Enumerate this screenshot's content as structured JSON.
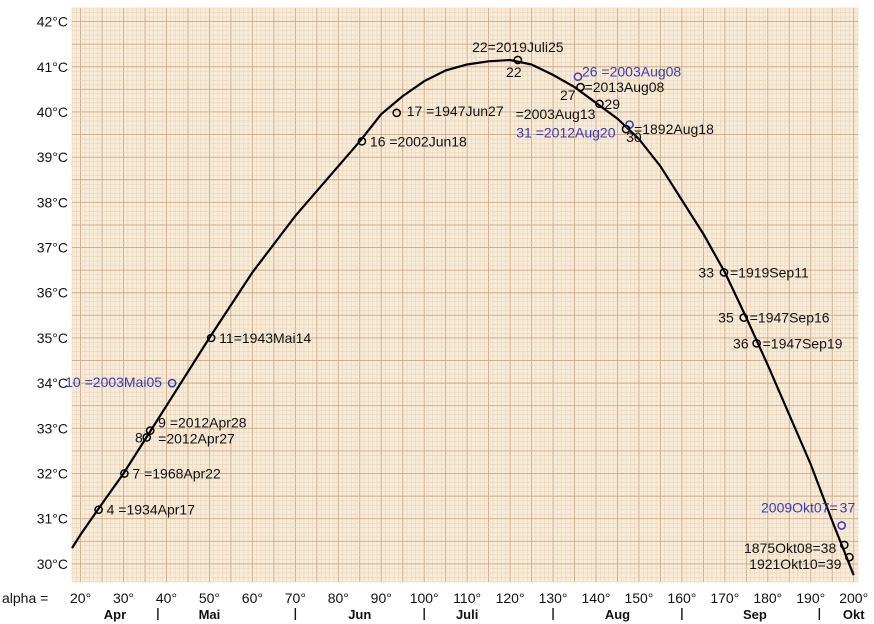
{
  "chart_data": {
    "type": "line",
    "title": "",
    "xlabel": "",
    "ylabel": "",
    "x_axis_prefix": "alpha =",
    "xlim": [
      18,
      201
    ],
    "ylim": [
      29.6,
      42.3
    ],
    "x_ticks": [
      {
        "value": 20,
        "label": "20°"
      },
      {
        "value": 30,
        "label": "30°"
      },
      {
        "value": 40,
        "label": "40°"
      },
      {
        "value": 50,
        "label": "50°"
      },
      {
        "value": 60,
        "label": "60°"
      },
      {
        "value": 70,
        "label": "70°"
      },
      {
        "value": 80,
        "label": "80°"
      },
      {
        "value": 90,
        "label": "90°"
      },
      {
        "value": 100,
        "label": "100°"
      },
      {
        "value": 110,
        "label": "110°"
      },
      {
        "value": 120,
        "label": "120°"
      },
      {
        "value": 130,
        "label": "130°"
      },
      {
        "value": 140,
        "label": "140°"
      },
      {
        "value": 150,
        "label": "150°"
      },
      {
        "value": 160,
        "label": "160°"
      },
      {
        "value": 170,
        "label": "170°"
      },
      {
        "value": 180,
        "label": "180°"
      },
      {
        "value": 190,
        "label": "190°"
      },
      {
        "value": 200,
        "label": "200°"
      }
    ],
    "y_ticks": [
      {
        "value": 30,
        "label": "30°C"
      },
      {
        "value": 31,
        "label": "31°C"
      },
      {
        "value": 32,
        "label": "32°C"
      },
      {
        "value": 33,
        "label": "33°C"
      },
      {
        "value": 34,
        "label": "34°C"
      },
      {
        "value": 35,
        "label": "35°C"
      },
      {
        "value": 36,
        "label": "36°C"
      },
      {
        "value": 37,
        "label": "37°C"
      },
      {
        "value": 38,
        "label": "38°C"
      },
      {
        "value": 39,
        "label": "39°C"
      },
      {
        "value": 40,
        "label": "40°C"
      },
      {
        "value": 41,
        "label": "41°C"
      },
      {
        "value": 42,
        "label": "42°C"
      }
    ],
    "month_labels": [
      {
        "x": 28,
        "label": "Apr"
      },
      {
        "x": 50,
        "label": "Mai"
      },
      {
        "x": 85,
        "label": "Jun"
      },
      {
        "x": 110,
        "label": "Juli"
      },
      {
        "x": 145,
        "label": "Aug"
      },
      {
        "x": 177,
        "label": "Sep"
      },
      {
        "x": 200,
        "label": "Okt"
      }
    ],
    "month_separators": [
      38,
      70,
      100,
      130,
      160,
      192
    ],
    "grid": true,
    "curve": {
      "x": [
        18,
        20,
        24,
        30,
        35,
        40,
        50,
        60,
        70,
        80,
        85,
        90,
        95,
        100,
        105,
        110,
        115,
        120,
        125,
        130,
        135,
        140,
        145,
        150,
        155,
        160,
        165,
        170,
        175,
        180,
        185,
        190,
        195,
        200
      ],
      "y": [
        30.35,
        30.65,
        31.2,
        32.0,
        32.75,
        33.5,
        35.0,
        36.45,
        37.7,
        38.8,
        39.35,
        39.95,
        40.35,
        40.68,
        40.92,
        41.05,
        41.12,
        41.15,
        41.05,
        40.82,
        40.55,
        40.2,
        39.85,
        39.4,
        38.8,
        38.05,
        37.3,
        36.45,
        35.45,
        34.4,
        33.3,
        32.2,
        30.95,
        29.75
      ]
    },
    "points": [
      {
        "x": 24.2,
        "y": 31.2,
        "label": "4 =1934Apr17",
        "highlight": false
      },
      {
        "x": 30.2,
        "y": 32.0,
        "label": "7 =1968Apr22",
        "highlight": false
      },
      {
        "x": 35.4,
        "y": 32.8,
        "label": "8",
        "highlight": false
      },
      {
        "x": 36.2,
        "y": 32.95,
        "label": "9 =2012Apr28",
        "highlight": false
      },
      {
        "x": 36.2,
        "y": 32.95,
        "label": "=2012Apr27",
        "highlight": false
      },
      {
        "x": 41.3,
        "y": 34.0,
        "label": "10 =2003Mai05",
        "highlight": true
      },
      {
        "x": 50.4,
        "y": 35.0,
        "label": "11=1943Mai14",
        "highlight": false
      },
      {
        "x": 85.5,
        "y": 39.35,
        "label": "16 =2002Jun18",
        "highlight": false
      },
      {
        "x": 93.6,
        "y": 39.98,
        "label": "17 =1947Jun27",
        "highlight": false
      },
      {
        "x": 121.8,
        "y": 41.15,
        "label": "22=2019Juli25",
        "highlight": false
      },
      {
        "x": 121.8,
        "y": 41.15,
        "label": "22",
        "highlight": false
      },
      {
        "x": 135.8,
        "y": 40.78,
        "label": "26 =2003Aug08",
        "highlight": true
      },
      {
        "x": 136.4,
        "y": 40.55,
        "label": "27",
        "highlight": false
      },
      {
        "x": 136.4,
        "y": 40.55,
        "label": "=2013Aug08",
        "highlight": false
      },
      {
        "x": 140.8,
        "y": 40.18,
        "label": "=2003Aug13",
        "highlight": false
      },
      {
        "x": 140.8,
        "y": 40.18,
        "label": "29",
        "highlight": false
      },
      {
        "x": 147.8,
        "y": 39.72,
        "label": "31 =2012Aug20",
        "highlight": true
      },
      {
        "x": 147.0,
        "y": 39.62,
        "label": "30",
        "highlight": false
      },
      {
        "x": 147.0,
        "y": 39.62,
        "label": "=1892Aug18",
        "highlight": false
      },
      {
        "x": 169.8,
        "y": 36.45,
        "label": "33",
        "highlight": false
      },
      {
        "x": 169.8,
        "y": 36.45,
        "label": "=1919Sep11",
        "highlight": false
      },
      {
        "x": 174.4,
        "y": 35.45,
        "label": "35",
        "highlight": false
      },
      {
        "x": 174.4,
        "y": 35.45,
        "label": "=1947Sep16",
        "highlight": false
      },
      {
        "x": 177.4,
        "y": 34.88,
        "label": "36",
        "highlight": false
      },
      {
        "x": 177.4,
        "y": 34.88,
        "label": "=1947Sep19",
        "highlight": false
      },
      {
        "x": 197.2,
        "y": 30.85,
        "label": "2009Okt07=",
        "highlight": true
      },
      {
        "x": 197.2,
        "y": 30.85,
        "label": "37",
        "highlight": true
      },
      {
        "x": 197.8,
        "y": 30.42,
        "label": "1875Okt08=38",
        "highlight": false
      },
      {
        "x": 199.0,
        "y": 30.15,
        "label": "1921Okt10=39",
        "highlight": false
      }
    ],
    "colors": {
      "background": "#f8ecd8",
      "grid_minor": "#e6cfb5",
      "grid_major": "#c9a98a",
      "curve": "#000000",
      "highlight_text": "#3a3ab8",
      "text": "#111111"
    }
  }
}
